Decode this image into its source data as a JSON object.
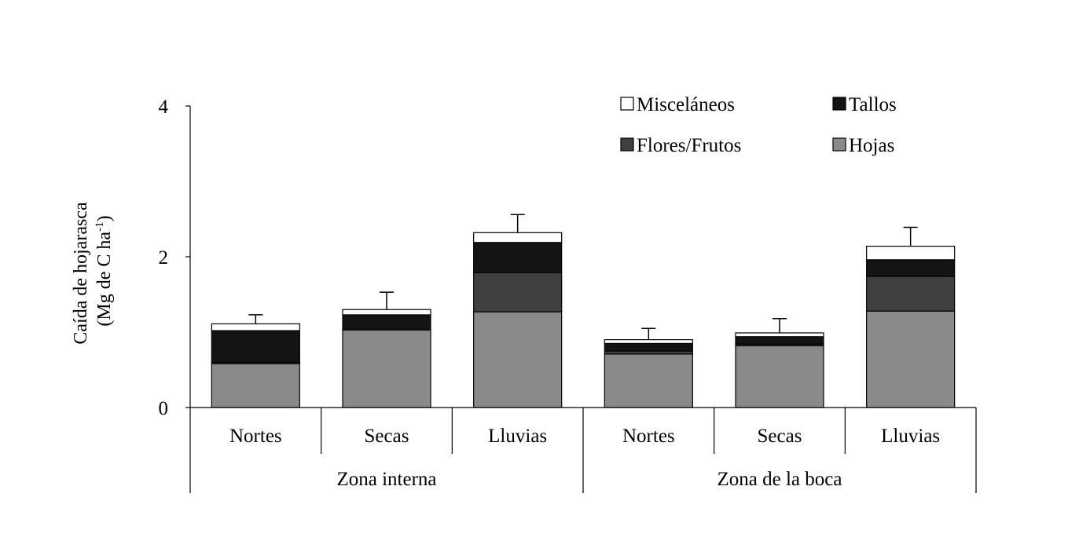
{
  "chart_data": {
    "type": "bar",
    "stacked": true,
    "title": "",
    "ylabel_line1": "Caída de hojarasca",
    "ylabel_line2_pre": "(Mg  de C ha",
    "ylabel_line2_sup": "-1",
    "ylabel_line2_post": ")",
    "ylim": [
      0,
      4
    ],
    "yticks": [
      "0",
      "2",
      "4"
    ],
    "categories": [
      "Nortes",
      "Secas",
      "Lluvias",
      "Nortes",
      "Secas",
      "Lluvias"
    ],
    "groups": [
      {
        "label": "Zona interna",
        "count": 3
      },
      {
        "label": "Zona de la boca",
        "count": 3
      }
    ],
    "series": [
      {
        "name": "Hojas",
        "color": "#8a8a8a",
        "values": [
          0.58,
          1.03,
          1.27,
          0.71,
          0.82,
          1.28
        ]
      },
      {
        "name": "Flores/Frutos",
        "color": "#404040",
        "values": [
          0.02,
          0.0,
          0.52,
          0.04,
          0.02,
          0.46
        ]
      },
      {
        "name": "Tallos",
        "color": "#141414",
        "values": [
          0.42,
          0.2,
          0.4,
          0.1,
          0.1,
          0.22
        ]
      },
      {
        "name": "Misceláneos",
        "color": "#ffffff",
        "values": [
          0.09,
          0.07,
          0.13,
          0.05,
          0.05,
          0.18
        ]
      }
    ],
    "error_tops": [
      1.23,
      1.53,
      2.56,
      1.05,
      1.18,
      2.39
    ],
    "legend": {
      "placement": "top-right",
      "order": [
        "Misceláneos",
        "Tallos",
        "Flores/Frutos",
        "Hojas"
      ]
    }
  }
}
